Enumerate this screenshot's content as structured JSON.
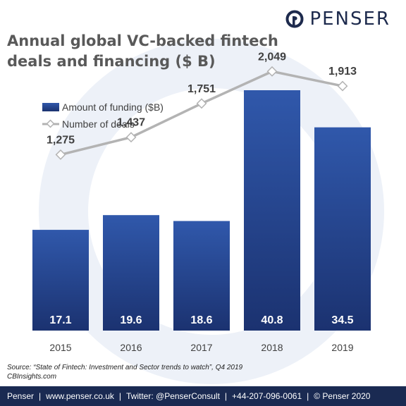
{
  "brand": {
    "name": "PENSER"
  },
  "chart_data": {
    "type": "bar",
    "title": "Annual global VC-backed fintech deals and financing ($ B)",
    "categories": [
      "2015",
      "2016",
      "2017",
      "2018",
      "2019"
    ],
    "series": [
      {
        "name": "Amount of funding ($B)",
        "type": "bar",
        "values": [
          17.1,
          19.6,
          18.6,
          40.8,
          34.5
        ],
        "value_labels": [
          "17.1",
          "19.6",
          "18.6",
          "40.8",
          "34.5"
        ]
      },
      {
        "name": "Number of deals",
        "type": "line",
        "values": [
          1275,
          1437,
          1751,
          2049,
          1913
        ],
        "value_labels": [
          "1,275",
          "1,437",
          "1,751",
          "2,049",
          "1,913"
        ]
      }
    ],
    "legend_position": "top-left",
    "grid": false,
    "colors": {
      "bar_top": "#2f55a8",
      "bar_bottom": "#1c3470",
      "line": "#b3b3b3"
    }
  },
  "source": {
    "line1": "Source: “State of Fintech: Investment and Sector trends to watch”, Q4 2019",
    "line2": "CBInsights.com"
  },
  "footer": {
    "items": [
      "Penser",
      "www.penser.co.uk",
      "Twitter: @PenserConsult",
      "+44-207-096-0061",
      "© Penser 2020"
    ],
    "separator": "|"
  }
}
